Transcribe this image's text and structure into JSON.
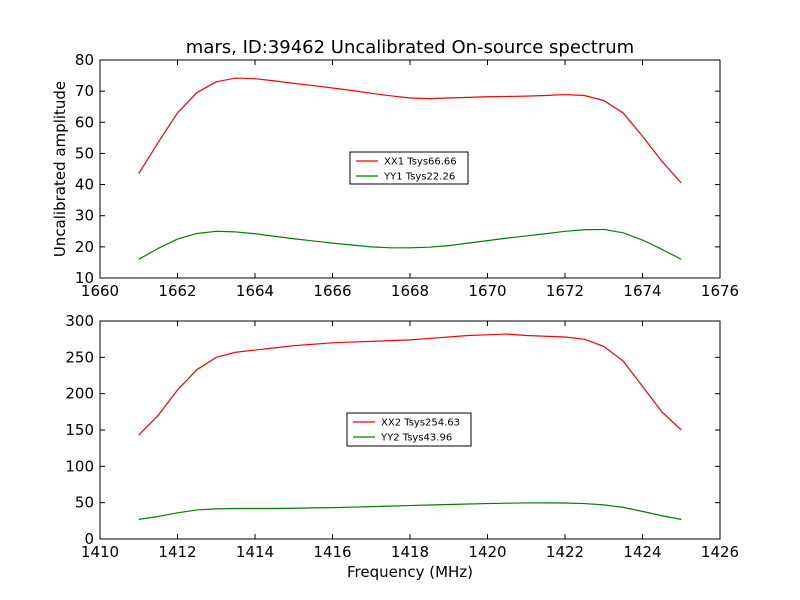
{
  "title": "mars, ID:39462 Uncalibrated On-source spectrum",
  "chart_data": [
    {
      "type": "line",
      "xlim": [
        1660,
        1676
      ],
      "ylim": [
        10,
        80
      ],
      "xticks": [
        "1660",
        "1662",
        "1664",
        "1666",
        "1668",
        "1670",
        "1672",
        "1674",
        "1676"
      ],
      "yticks": [
        "10",
        "20",
        "30",
        "40",
        "50",
        "60",
        "70",
        "80"
      ],
      "xlabel": "",
      "ylabel": "Uncalibrated amplitude",
      "legend_position": "center",
      "series": [
        {
          "name": "XX1 Tsys66.66",
          "color": "#ff0000",
          "x": [
            1661.0,
            1661.5,
            1662.0,
            1662.5,
            1663.0,
            1663.5,
            1664.0,
            1664.5,
            1665.0,
            1665.5,
            1666.0,
            1666.5,
            1667.0,
            1667.5,
            1668.0,
            1668.5,
            1669.0,
            1669.5,
            1670.0,
            1670.5,
            1671.0,
            1671.5,
            1672.0,
            1672.5,
            1673.0,
            1673.5,
            1674.0,
            1674.5,
            1675.0
          ],
          "y": [
            43.5,
            53.5,
            63.0,
            69.5,
            73.0,
            74.2,
            74.0,
            73.3,
            72.5,
            71.8,
            71.0,
            70.2,
            69.3,
            68.5,
            67.8,
            67.6,
            67.8,
            68.0,
            68.2,
            68.3,
            68.4,
            68.6,
            68.9,
            68.6,
            67.0,
            63.0,
            55.5,
            47.5,
            40.5
          ]
        },
        {
          "name": "YY1 Tsys22.26",
          "color": "#008000",
          "x": [
            1661.0,
            1661.5,
            1662.0,
            1662.5,
            1663.0,
            1663.5,
            1664.0,
            1664.5,
            1665.0,
            1665.5,
            1666.0,
            1666.5,
            1667.0,
            1667.5,
            1668.0,
            1668.5,
            1669.0,
            1669.5,
            1670.0,
            1670.5,
            1671.0,
            1671.5,
            1672.0,
            1672.5,
            1673.0,
            1673.5,
            1674.0,
            1674.5,
            1675.0
          ],
          "y": [
            16.0,
            19.5,
            22.5,
            24.3,
            25.0,
            24.8,
            24.2,
            23.4,
            22.6,
            21.9,
            21.2,
            20.6,
            20.0,
            19.7,
            19.7,
            19.9,
            20.4,
            21.2,
            22.0,
            22.8,
            23.5,
            24.2,
            25.0,
            25.5,
            25.6,
            24.5,
            22.2,
            19.2,
            16.0
          ]
        }
      ]
    },
    {
      "type": "line",
      "xlim": [
        1410,
        1426
      ],
      "ylim": [
        0,
        300
      ],
      "xticks": [
        "1410",
        "1412",
        "1414",
        "1416",
        "1418",
        "1420",
        "1422",
        "1424",
        "1426"
      ],
      "yticks": [
        "0",
        "50",
        "100",
        "150",
        "200",
        "250",
        "300"
      ],
      "xlabel": "Frequency (MHz)",
      "ylabel": "",
      "legend_position": "center",
      "series": [
        {
          "name": "XX2 Tsys254.63",
          "color": "#ff0000",
          "x": [
            1411.0,
            1411.5,
            1412.0,
            1412.5,
            1413.0,
            1413.5,
            1414.0,
            1414.5,
            1415.0,
            1415.5,
            1416.0,
            1416.5,
            1417.0,
            1417.5,
            1418.0,
            1418.5,
            1419.0,
            1419.5,
            1420.0,
            1420.5,
            1421.0,
            1421.5,
            1422.0,
            1422.5,
            1423.0,
            1423.5,
            1424.0,
            1424.5,
            1425.0
          ],
          "y": [
            143,
            170,
            205,
            233,
            250,
            257,
            260,
            263,
            266,
            268,
            270,
            271,
            272,
            273,
            274,
            276,
            278,
            280,
            281,
            282,
            280,
            279,
            278,
            275,
            265,
            245,
            210,
            175,
            150
          ]
        },
        {
          "name": "YY2 Tsys43.96",
          "color": "#008000",
          "x": [
            1411.0,
            1411.5,
            1412.0,
            1412.5,
            1413.0,
            1413.5,
            1414.0,
            1414.5,
            1415.0,
            1415.5,
            1416.0,
            1416.5,
            1417.0,
            1417.5,
            1418.0,
            1418.5,
            1419.0,
            1419.5,
            1420.0,
            1420.5,
            1421.0,
            1421.5,
            1422.0,
            1422.5,
            1423.0,
            1423.5,
            1424.0,
            1424.5,
            1425.0
          ],
          "y": [
            27,
            31,
            36,
            40,
            41.5,
            42,
            42,
            42,
            42.3,
            42.8,
            43.2,
            43.8,
            44.5,
            45.2,
            46,
            46.8,
            47.5,
            48.2,
            48.8,
            49.3,
            49.6,
            49.7,
            49.5,
            48.8,
            47,
            43.5,
            38,
            32,
            27
          ]
        }
      ]
    }
  ]
}
